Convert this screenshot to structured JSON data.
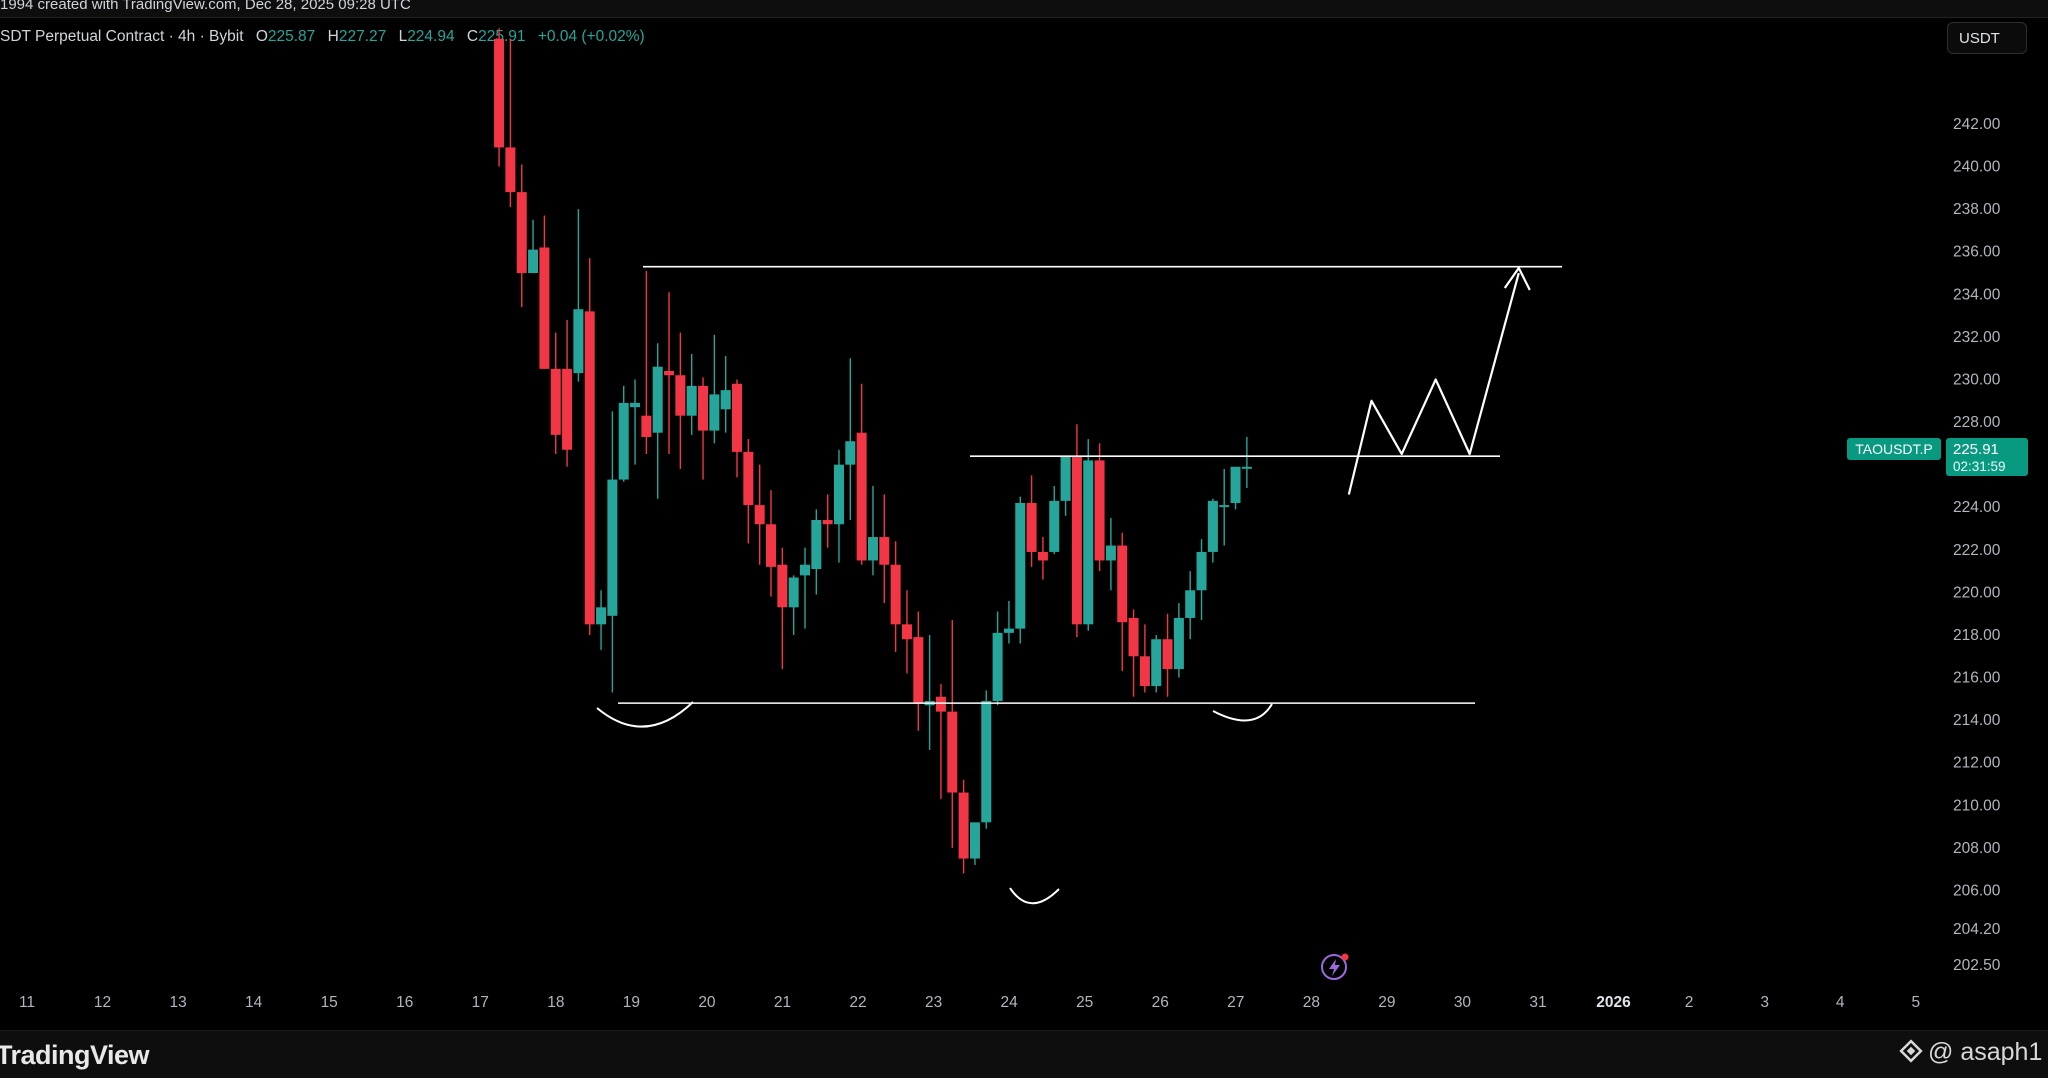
{
  "header": {
    "snapshot_text": "1994 created with TradingView.com, Dec 28, 2025 09:28 UTC"
  },
  "legend": {
    "symbol_text": "SDT Perpetual Contract · 4h · Bybit",
    "open_label": "O",
    "open_value": "225.87",
    "high_label": "H",
    "high_value": "227.27",
    "low_label": "L",
    "low_value": "224.94",
    "close_label": "C",
    "close_value": "225.91",
    "change": "+0.04 (+0.02%)"
  },
  "currency_button": "USDT",
  "price_tag": {
    "symbol": "TAOUSDT.P",
    "price": "225.91",
    "countdown": "02:31:59"
  },
  "footer": {
    "brand": "TradingView",
    "username": "@ asaph1"
  },
  "colors": {
    "up": "#26a69a",
    "down": "#f23645",
    "background": "#000000",
    "tag": "#089981",
    "drawings": "#ffffff"
  },
  "icons": [
    "tradingview-logo-icon",
    "lightning-icon",
    "user-badge-icon"
  ],
  "chart_data": {
    "type": "candlestick",
    "title": "",
    "timeframe": "4h",
    "price_scale_labels": [
      "242.00",
      "240.00",
      "238.00",
      "236.00",
      "234.00",
      "232.00",
      "230.00",
      "228.00",
      "224.00",
      "222.00",
      "220.00",
      "218.00",
      "216.00",
      "214.00",
      "212.00",
      "210.00",
      "208.00",
      "206.00",
      "204.20",
      "202.50"
    ],
    "time_scale_labels": [
      "11",
      "12",
      "13",
      "14",
      "15",
      "16",
      "17",
      "18",
      "19",
      "20",
      "21",
      "22",
      "23",
      "24",
      "25",
      "26",
      "27",
      "28",
      "29",
      "30",
      "31",
      "2026",
      "2",
      "3",
      "4",
      "5"
    ],
    "x_day_anchor": [
      11,
      26
    ],
    "candles": [
      {
        "d": 17.25,
        "o": 246.0,
        "h": 246.5,
        "c": 240.9,
        "l": 240.0
      },
      {
        "d": 17.4,
        "o": 240.9,
        "h": 246.0,
        "c": 238.8,
        "l": 238.1
      },
      {
        "d": 17.55,
        "o": 238.8,
        "h": 240.1,
        "c": 235.0,
        "l": 233.4
      },
      {
        "d": 17.7,
        "o": 235.0,
        "h": 237.5,
        "c": 236.1,
        "l": 235.0
      },
      {
        "d": 17.85,
        "o": 236.2,
        "h": 237.7,
        "c": 230.5,
        "l": 230.5
      },
      {
        "d": 18.0,
        "o": 230.5,
        "h": 232.2,
        "c": 227.4,
        "l": 226.5
      },
      {
        "d": 18.15,
        "o": 230.5,
        "h": 232.8,
        "c": 226.7,
        "l": 225.9
      },
      {
        "d": 18.3,
        "o": 230.3,
        "h": 238.0,
        "c": 233.3,
        "l": 229.9
      },
      {
        "d": 18.45,
        "o": 233.2,
        "h": 235.7,
        "c": 218.5,
        "l": 218.0
      },
      {
        "d": 18.6,
        "o": 218.5,
        "h": 220.1,
        "c": 219.3,
        "l": 217.3
      },
      {
        "d": 18.75,
        "o": 218.9,
        "h": 228.5,
        "c": 225.3,
        "l": 215.3
      },
      {
        "d": 18.9,
        "o": 225.3,
        "h": 229.7,
        "c": 228.9,
        "l": 225.2
      },
      {
        "d": 19.05,
        "o": 228.7,
        "h": 230.0,
        "c": 228.9,
        "l": 226.0
      },
      {
        "d": 19.2,
        "o": 228.3,
        "h": 235.1,
        "c": 227.3,
        "l": 226.5
      },
      {
        "d": 19.35,
        "o": 227.5,
        "h": 231.7,
        "c": 230.6,
        "l": 224.4
      },
      {
        "d": 19.5,
        "o": 230.4,
        "h": 234.1,
        "c": 230.2,
        "l": 226.5
      },
      {
        "d": 19.65,
        "o": 230.2,
        "h": 232.2,
        "c": 228.3,
        "l": 225.8
      },
      {
        "d": 19.8,
        "o": 228.3,
        "h": 231.2,
        "c": 229.7,
        "l": 227.4
      },
      {
        "d": 19.95,
        "o": 229.7,
        "h": 230.1,
        "c": 227.6,
        "l": 225.3
      },
      {
        "d": 20.1,
        "o": 227.6,
        "h": 232.1,
        "c": 229.3,
        "l": 227.0
      },
      {
        "d": 20.25,
        "o": 228.6,
        "h": 231.1,
        "c": 229.5,
        "l": 227.5
      },
      {
        "d": 20.4,
        "o": 229.8,
        "h": 230.0,
        "c": 226.6,
        "l": 225.4
      },
      {
        "d": 20.55,
        "o": 226.6,
        "h": 227.2,
        "c": 224.1,
        "l": 222.3
      },
      {
        "d": 20.7,
        "o": 224.1,
        "h": 226.0,
        "c": 223.2,
        "l": 221.3
      },
      {
        "d": 20.85,
        "o": 223.2,
        "h": 224.8,
        "c": 221.2,
        "l": 219.8
      },
      {
        "d": 21.0,
        "o": 221.3,
        "h": 222.1,
        "c": 219.3,
        "l": 216.4
      },
      {
        "d": 21.15,
        "o": 219.3,
        "h": 220.8,
        "c": 220.7,
        "l": 218.0
      },
      {
        "d": 21.3,
        "o": 220.8,
        "h": 222.1,
        "c": 221.3,
        "l": 218.3
      },
      {
        "d": 21.45,
        "o": 221.1,
        "h": 223.9,
        "c": 223.4,
        "l": 219.9
      },
      {
        "d": 21.6,
        "o": 223.4,
        "h": 224.6,
        "c": 223.2,
        "l": 222.1
      },
      {
        "d": 21.75,
        "o": 223.2,
        "h": 226.7,
        "c": 226.0,
        "l": 221.4
      },
      {
        "d": 21.9,
        "o": 226.0,
        "h": 231.0,
        "c": 227.1,
        "l": 223.4
      },
      {
        "d": 22.05,
        "o": 227.5,
        "h": 229.8,
        "c": 221.5,
        "l": 221.3
      },
      {
        "d": 22.2,
        "o": 221.5,
        "h": 225.0,
        "c": 222.6,
        "l": 220.8
      },
      {
        "d": 22.35,
        "o": 222.6,
        "h": 224.6,
        "c": 221.3,
        "l": 219.5
      },
      {
        "d": 22.5,
        "o": 221.3,
        "h": 222.4,
        "c": 218.5,
        "l": 217.2
      },
      {
        "d": 22.65,
        "o": 218.5,
        "h": 220.1,
        "c": 217.8,
        "l": 216.2
      },
      {
        "d": 22.8,
        "o": 217.9,
        "h": 219.1,
        "c": 214.8,
        "l": 213.5
      },
      {
        "d": 22.95,
        "o": 214.7,
        "h": 218.0,
        "c": 214.9,
        "l": 212.6
      },
      {
        "d": 23.1,
        "o": 215.1,
        "h": 215.7,
        "c": 214.4,
        "l": 210.3
      },
      {
        "d": 23.25,
        "o": 214.4,
        "h": 218.7,
        "c": 210.6,
        "l": 208.0
      },
      {
        "d": 23.4,
        "o": 210.6,
        "h": 211.2,
        "c": 207.5,
        "l": 206.8
      },
      {
        "d": 23.55,
        "o": 207.5,
        "h": 209.1,
        "c": 209.2,
        "l": 207.2
      },
      {
        "d": 23.7,
        "o": 209.2,
        "h": 215.4,
        "c": 214.9,
        "l": 208.9
      },
      {
        "d": 23.85,
        "o": 214.9,
        "h": 219.1,
        "c": 218.1,
        "l": 214.7
      },
      {
        "d": 24.0,
        "o": 218.1,
        "h": 219.6,
        "c": 218.3,
        "l": 217.6
      },
      {
        "d": 24.15,
        "o": 218.3,
        "h": 224.5,
        "c": 224.2,
        "l": 217.6
      },
      {
        "d": 24.3,
        "o": 224.2,
        "h": 225.5,
        "c": 221.9,
        "l": 221.2
      },
      {
        "d": 24.45,
        "o": 221.9,
        "h": 222.6,
        "c": 221.5,
        "l": 220.6
      },
      {
        "d": 24.6,
        "o": 221.9,
        "h": 225.0,
        "c": 224.3,
        "l": 221.8
      },
      {
        "d": 24.75,
        "o": 224.3,
        "h": 226.2,
        "c": 226.4,
        "l": 223.6
      },
      {
        "d": 24.9,
        "o": 226.4,
        "h": 227.9,
        "c": 218.5,
        "l": 217.9
      },
      {
        "d": 25.05,
        "o": 218.5,
        "h": 227.2,
        "c": 226.2,
        "l": 218.2
      },
      {
        "d": 25.2,
        "o": 226.2,
        "h": 227.0,
        "c": 221.5,
        "l": 221.0
      },
      {
        "d": 25.35,
        "o": 221.5,
        "h": 223.5,
        "c": 222.2,
        "l": 220.1
      },
      {
        "d": 25.5,
        "o": 222.2,
        "h": 222.8,
        "c": 218.6,
        "l": 216.3
      },
      {
        "d": 25.65,
        "o": 218.8,
        "h": 219.2,
        "c": 217.0,
        "l": 215.1
      },
      {
        "d": 25.8,
        "o": 217.0,
        "h": 218.5,
        "c": 215.6,
        "l": 215.3
      },
      {
        "d": 25.95,
        "o": 215.6,
        "h": 218.0,
        "c": 217.8,
        "l": 215.3
      },
      {
        "d": 26.1,
        "o": 217.8,
        "h": 219.0,
        "c": 216.4,
        "l": 215.1
      },
      {
        "d": 26.25,
        "o": 216.4,
        "h": 219.5,
        "c": 218.8,
        "l": 216.0
      },
      {
        "d": 26.4,
        "o": 218.8,
        "h": 221.0,
        "c": 220.1,
        "l": 217.8
      },
      {
        "d": 26.55,
        "o": 220.1,
        "h": 222.5,
        "c": 221.9,
        "l": 218.7
      },
      {
        "d": 26.7,
        "o": 221.9,
        "h": 224.4,
        "c": 224.3,
        "l": 221.4
      },
      {
        "d": 26.85,
        "o": 224.1,
        "h": 225.8,
        "c": 224.1,
        "l": 222.2
      },
      {
        "d": 27.0,
        "o": 224.2,
        "h": 225.9,
        "c": 225.9,
        "l": 223.9
      },
      {
        "d": 27.15,
        "o": 225.9,
        "h": 227.3,
        "c": 225.9,
        "l": 224.9
      }
    ],
    "drawings": {
      "resistance_top": 235.3,
      "neckline": 226.4,
      "support": 214.8,
      "projection_path": [
        [
          28.5,
          224.6
        ],
        [
          28.8,
          229.0
        ],
        [
          29.2,
          226.5
        ],
        [
          29.65,
          230.0
        ],
        [
          30.1,
          226.5
        ],
        [
          30.75,
          235.0
        ]
      ]
    }
  }
}
